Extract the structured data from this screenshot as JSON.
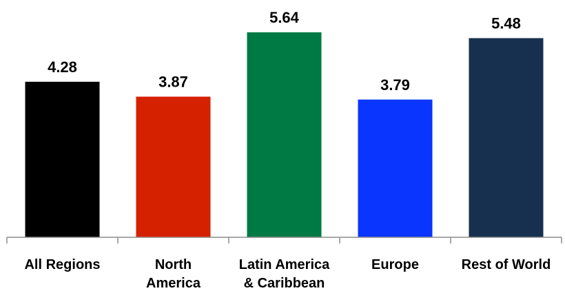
{
  "chart_data": {
    "type": "bar",
    "title": "",
    "xlabel": "",
    "ylabel": "",
    "categories": [
      [
        "All Regions"
      ],
      [
        "North",
        "America"
      ],
      [
        "Latin America",
        "& Caribbean"
      ],
      [
        "Europe"
      ],
      [
        "Rest of World"
      ]
    ],
    "values": [
      4.28,
      3.87,
      5.64,
      3.79,
      5.48
    ],
    "value_labels": [
      "4.28",
      "3.87",
      "5.64",
      "3.79",
      "5.48"
    ],
    "colors": [
      "#000000",
      "#d62100",
      "#007a45",
      "#0a35ff",
      "#17304f"
    ],
    "ylim": [
      0,
      5.64
    ],
    "grid": false,
    "legend": "none",
    "axis_color": "#8c8c8c"
  }
}
